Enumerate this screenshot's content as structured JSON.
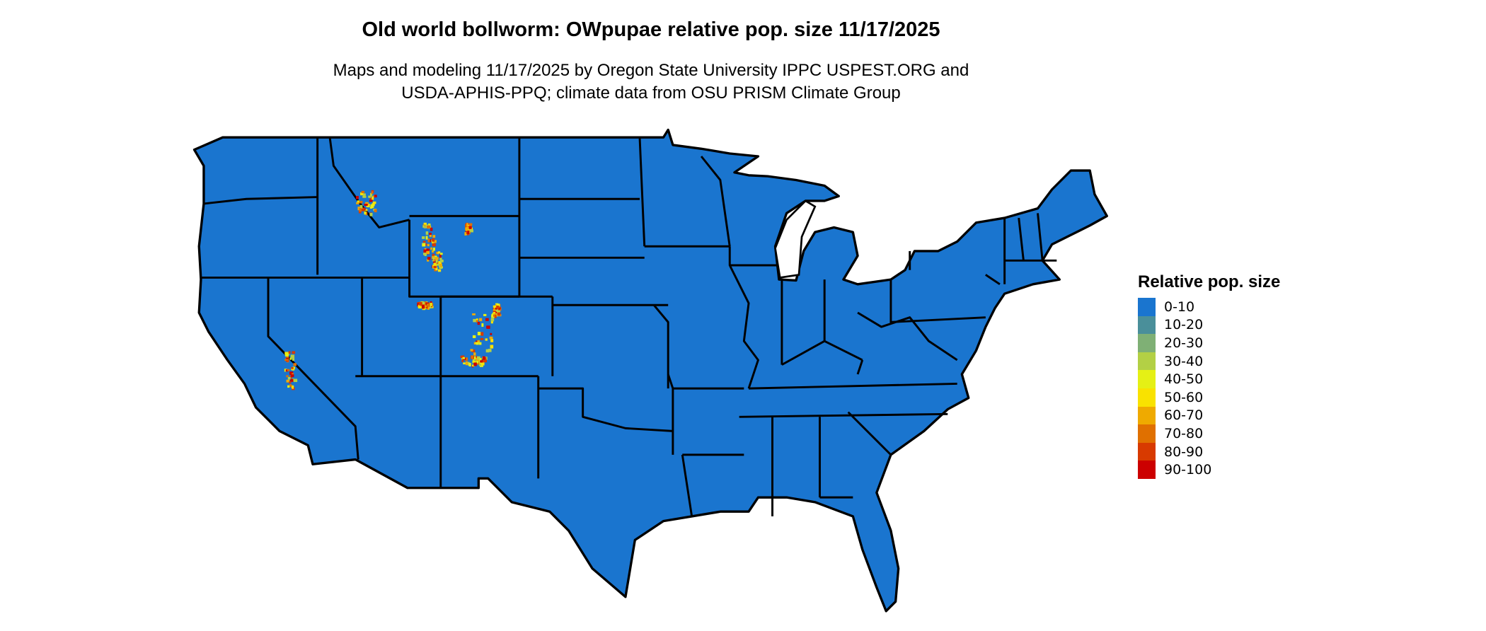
{
  "title": "Old world bollworm: OWpupae relative pop. size 11/17/2025",
  "subtitle_lines": [
    "Maps and modeling 11/17/2025 by Oregon State University IPPC USPEST.ORG and",
    "USDA-APHIS-PPQ; climate data from OSU PRISM Climate Group"
  ],
  "map": {
    "region": "Contiguous United States",
    "base_color": "#1a75cf",
    "outline_color": "#000000",
    "high_value_areas": [
      "Wyoming",
      "Colorado",
      "Utah",
      "Idaho",
      "Montana",
      "California (Sierra Nevada)"
    ]
  },
  "legend": {
    "title": "Relative pop. size",
    "items": [
      {
        "label": "0-10",
        "color": "#1a75cf"
      },
      {
        "label": "10-20",
        "color": "#4a8f9a"
      },
      {
        "label": "20-30",
        "color": "#7fb075"
      },
      {
        "label": "30-40",
        "color": "#b3d045"
      },
      {
        "label": "40-50",
        "color": "#e5f015"
      },
      {
        "label": "50-60",
        "color": "#f9e200"
      },
      {
        "label": "60-70",
        "color": "#efaa00"
      },
      {
        "label": "70-80",
        "color": "#e07000"
      },
      {
        "label": "80-90",
        "color": "#d83a00"
      },
      {
        "label": "90-100",
        "color": "#cc0000"
      }
    ]
  }
}
